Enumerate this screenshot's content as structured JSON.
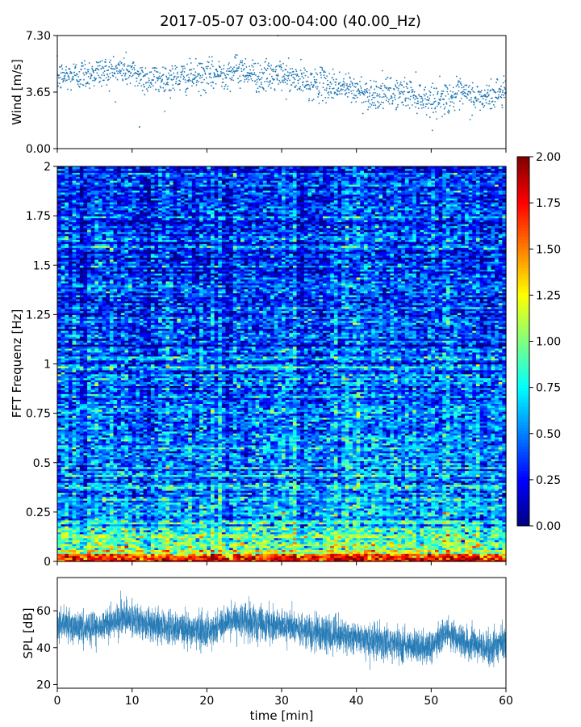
{
  "title": "2017-05-07 03:00-04:00 (40.00_Hz)",
  "chart_data": [
    {
      "type": "scatter",
      "name": "wind",
      "ylabel": "Wind [m/s]",
      "xlim": [
        0,
        60
      ],
      "ylim": [
        0,
        7.3
      ],
      "yticks": [
        "0.00",
        "3.65",
        "7.30"
      ],
      "x_tick_values": [
        0,
        10,
        20,
        30,
        40,
        50,
        60
      ],
      "series_color": "#1f77b4",
      "trend": {
        "x": [
          0,
          5,
          9,
          12,
          15,
          20,
          25,
          27,
          30,
          33,
          38,
          42,
          47,
          50,
          54,
          57,
          60
        ],
        "y": [
          4.6,
          4.9,
          5.1,
          4.5,
          4.5,
          4.7,
          5.1,
          4.6,
          4.7,
          4.3,
          4.0,
          3.5,
          3.6,
          3.1,
          3.5,
          3.2,
          3.8
        ]
      },
      "noted_extremes": [
        {
          "x": 29.5,
          "y": 7.3,
          "label": "max"
        },
        {
          "x": 11.0,
          "y": 1.4,
          "label": "min"
        }
      ]
    },
    {
      "type": "heatmap",
      "name": "spectrogram",
      "ylabel": "FFT Frequenz [Hz]",
      "xlim": [
        0,
        60
      ],
      "ylim": [
        0,
        2
      ],
      "yticks": [
        "0",
        "0.25",
        "0.5",
        "0.75",
        "1",
        "1.25",
        "1.5",
        "1.75",
        "2"
      ],
      "colormap": "jet",
      "colorbar": {
        "range": [
          0,
          2
        ],
        "ticks": [
          "0.00",
          "0.25",
          "0.50",
          "0.75",
          "1.00",
          "1.25",
          "1.50",
          "1.75",
          "2.00"
        ]
      },
      "mean_intensity_by_frequency": {
        "freq_hz": [
          0,
          0.05,
          0.1,
          0.2,
          0.3,
          0.5,
          0.75,
          1.0,
          1.5,
          2.0
        ],
        "value": [
          1.85,
          1.2,
          0.9,
          0.7,
          0.6,
          0.5,
          0.45,
          0.4,
          0.35,
          0.33
        ]
      }
    },
    {
      "type": "line",
      "name": "spl",
      "ylabel": "SPL [dB]",
      "xlabel": "time [min]",
      "xlim": [
        0,
        60
      ],
      "ylim": [
        18,
        78
      ],
      "yticks": [
        "20",
        "40",
        "60"
      ],
      "xticks": [
        "0",
        "10",
        "20",
        "30",
        "40",
        "50",
        "60"
      ],
      "series_color": "#1f77b4",
      "trend": {
        "x": [
          0,
          5,
          9,
          12,
          15,
          20,
          24,
          28,
          30,
          35,
          40,
          45,
          50,
          52,
          55,
          58,
          60
        ],
        "y": [
          53,
          50,
          57,
          52,
          51,
          49,
          56,
          52,
          52,
          48,
          45,
          42,
          40,
          48,
          42,
          40,
          44
        ]
      },
      "envelope_halfwidth_db": 8
    }
  ]
}
